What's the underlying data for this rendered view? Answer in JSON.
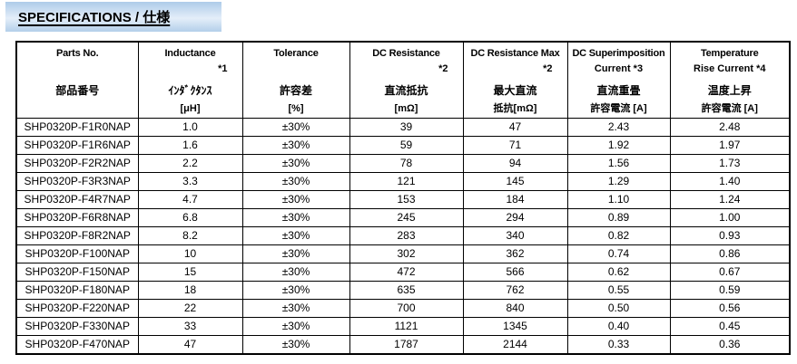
{
  "title": "SPECIFICATIONS / 仕様",
  "colors": {
    "title_gradient_top": "#aecbe9",
    "title_gradient_mid": "#e4eef9",
    "title_gradient_bottom": "#b3cfea",
    "grid_border": "#000000",
    "text": "#000000",
    "page_bg": "#ffffff"
  },
  "table": {
    "columns": [
      {
        "en": "Parts No.",
        "note": "",
        "jp": "部品番号",
        "unit": ""
      },
      {
        "en": "Inductance",
        "note": "*1",
        "jp": "ｲﾝﾀﾞｸﾀﾝｽ",
        "unit": "[μH]"
      },
      {
        "en": "Tolerance",
        "note": "",
        "jp": "許容差",
        "unit": "[%]"
      },
      {
        "en": "DC Resistance",
        "note": "*2",
        "jp": "直流抵抗",
        "unit": "[mΩ]"
      },
      {
        "en": "DC Resistance Max",
        "note": "*2",
        "jp": "最大直流",
        "unit": "抵抗[mΩ]"
      },
      {
        "en": "DC Superimposition",
        "note": "Current *3",
        "jp": "直流重畳",
        "unit": "許容電流 [A]"
      },
      {
        "en": "Temperature",
        "note": "Rise Current *4",
        "jp": "温度上昇",
        "unit": "許容電流 [A]"
      }
    ],
    "rows": [
      [
        "SHP0320P-F1R0NAP",
        "1.0",
        "±30%",
        "39",
        "47",
        "2.43",
        "2.48"
      ],
      [
        "SHP0320P-F1R6NAP",
        "1.6",
        "±30%",
        "59",
        "71",
        "1.92",
        "1.97"
      ],
      [
        "SHP0320P-F2R2NAP",
        "2.2",
        "±30%",
        "78",
        "94",
        "1.56",
        "1.73"
      ],
      [
        "SHP0320P-F3R3NAP",
        "3.3",
        "±30%",
        "121",
        "145",
        "1.29",
        "1.40"
      ],
      [
        "SHP0320P-F4R7NAP",
        "4.7",
        "±30%",
        "153",
        "184",
        "1.10",
        "1.24"
      ],
      [
        "SHP0320P-F6R8NAP",
        "6.8",
        "±30%",
        "245",
        "294",
        "0.89",
        "1.00"
      ],
      [
        "SHP0320P-F8R2NAP",
        "8.2",
        "±30%",
        "283",
        "340",
        "0.82",
        "0.93"
      ],
      [
        "SHP0320P-F100NAP",
        "10",
        "±30%",
        "302",
        "362",
        "0.74",
        "0.86"
      ],
      [
        "SHP0320P-F150NAP",
        "15",
        "±30%",
        "472",
        "566",
        "0.62",
        "0.67"
      ],
      [
        "SHP0320P-F180NAP",
        "18",
        "±30%",
        "635",
        "762",
        "0.55",
        "0.59"
      ],
      [
        "SHP0320P-F220NAP",
        "22",
        "±30%",
        "700",
        "840",
        "0.50",
        "0.56"
      ],
      [
        "SHP0320P-F330NAP",
        "33",
        "±30%",
        "1121",
        "1345",
        "0.40",
        "0.45"
      ],
      [
        "SHP0320P-F470NAP",
        "47",
        "±30%",
        "1787",
        "2144",
        "0.33",
        "0.36"
      ]
    ]
  }
}
